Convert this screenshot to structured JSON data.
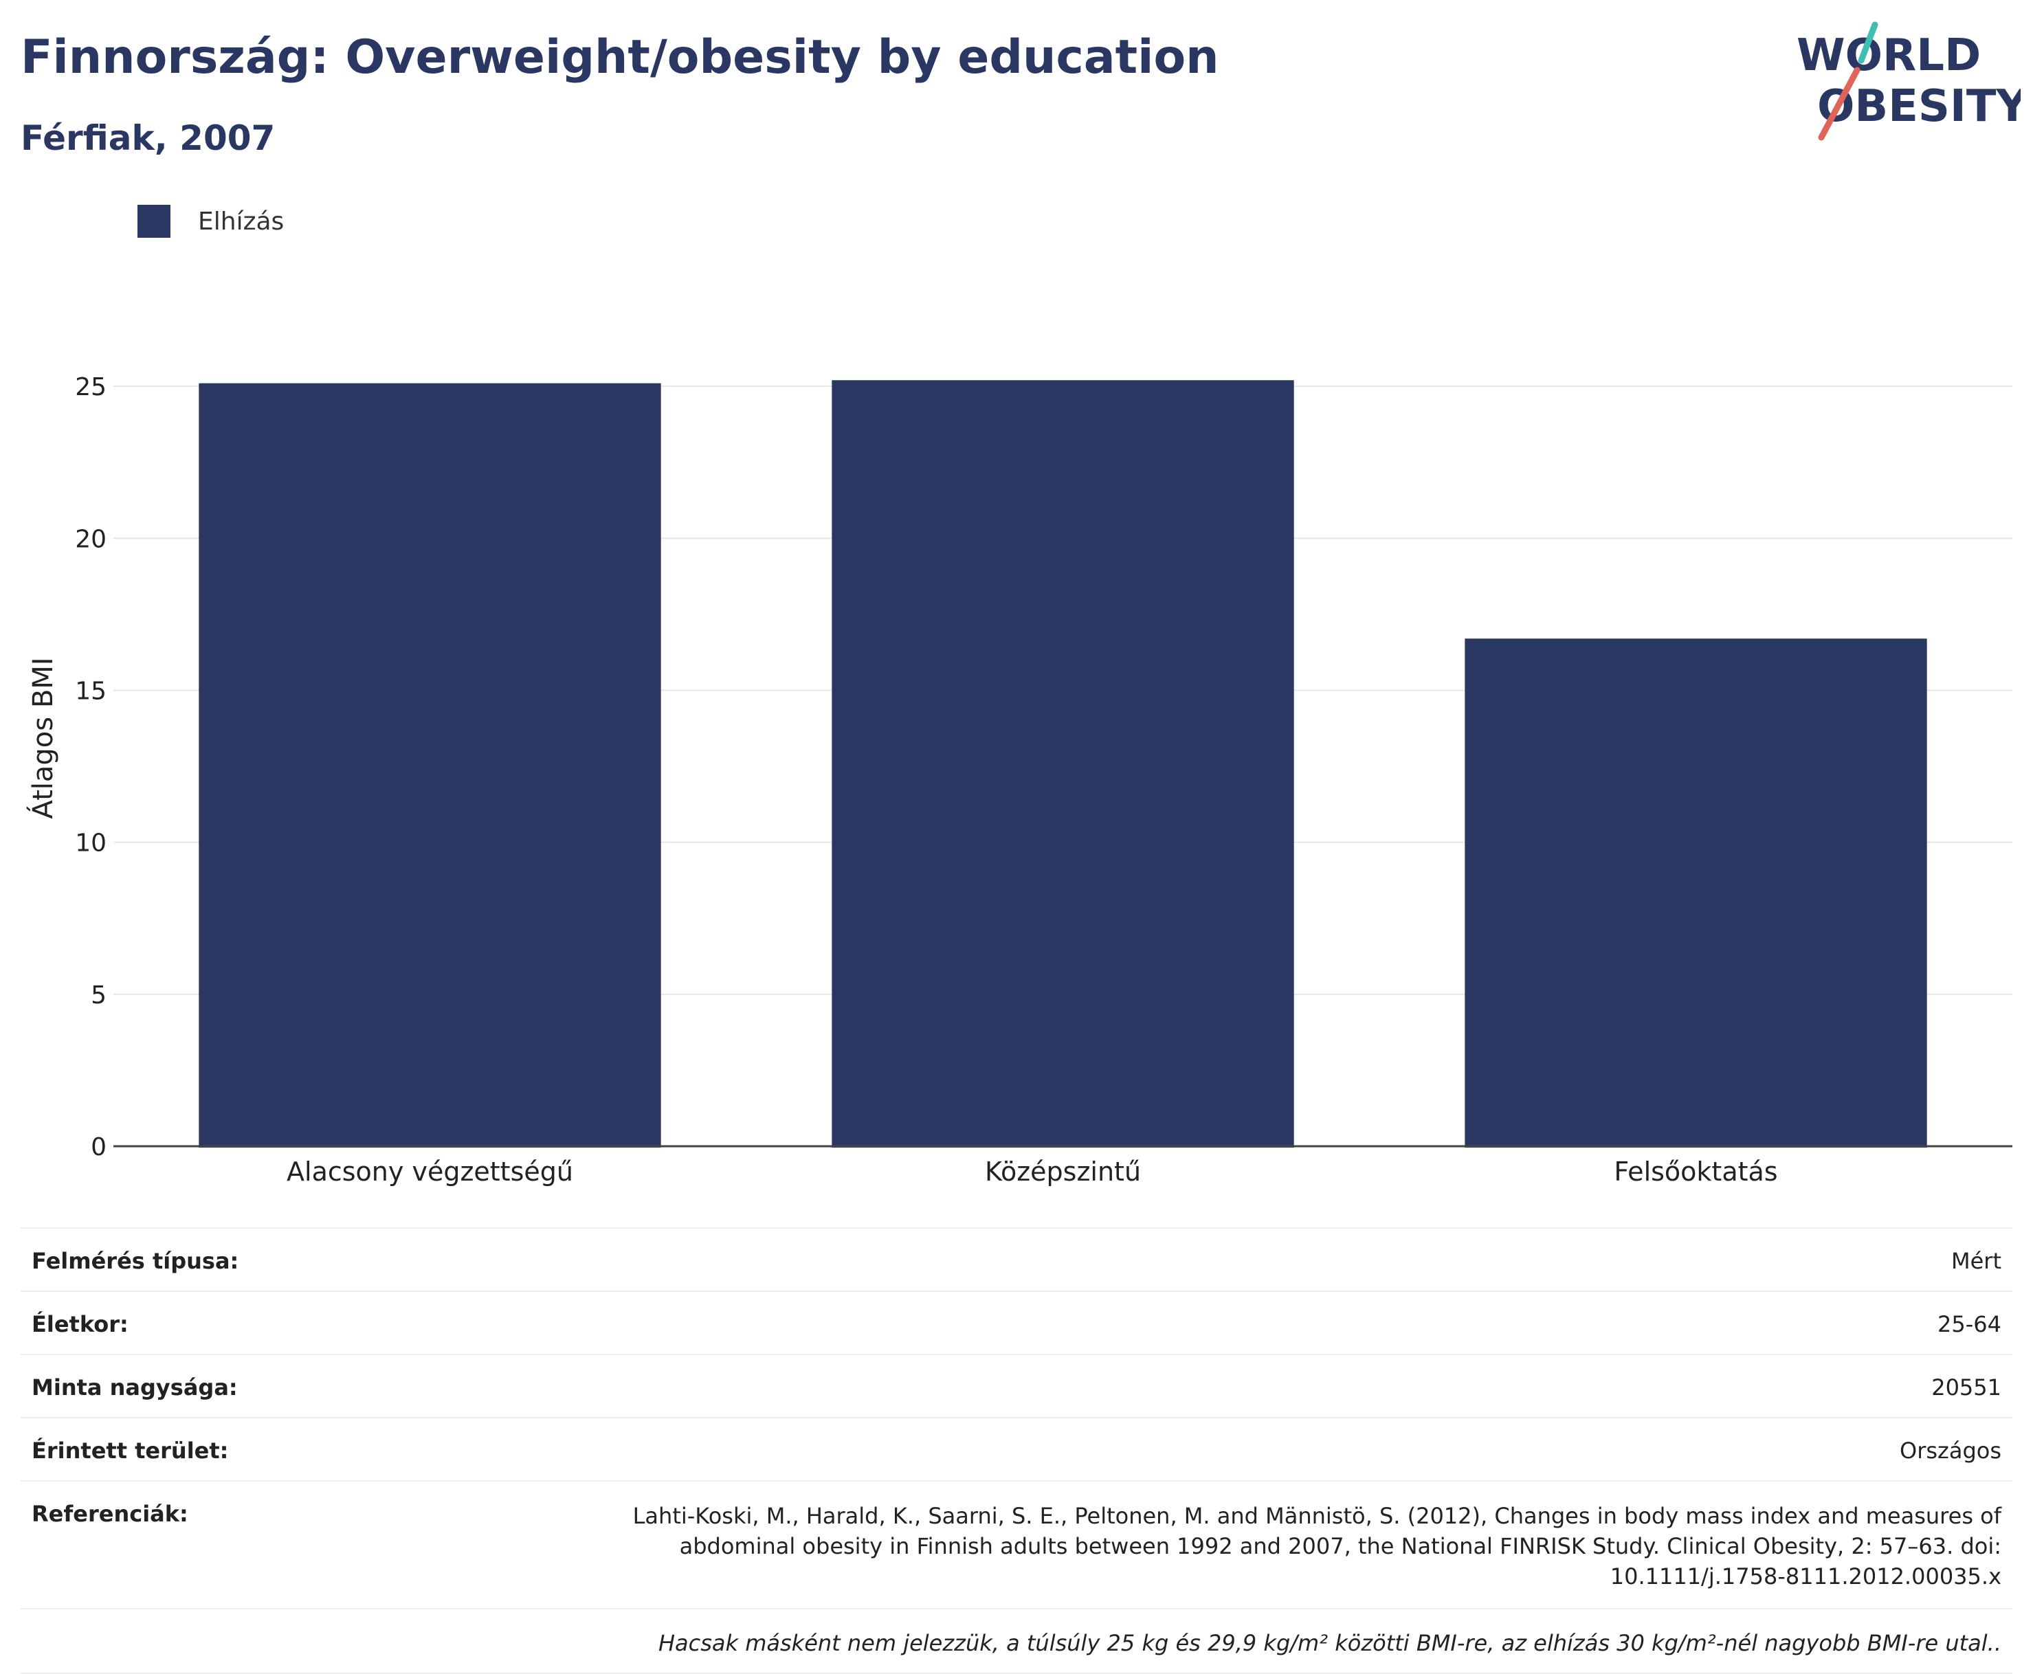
{
  "header": {
    "title": "Finnország: Overweight/obesity by education",
    "subtitle": "Férfiak, 2007"
  },
  "logo": {
    "line1": "WORLD",
    "line2": "OBESITY",
    "text_color": "#2b3763",
    "accent_teal": "#3fbfb2",
    "accent_red": "#e0645a"
  },
  "legend": {
    "label": "Elhízás",
    "color": "#2b3763"
  },
  "chart_data": {
    "type": "bar",
    "categories": [
      "Alacsony végzettségű",
      "Középszintű",
      "Felsőoktatás"
    ],
    "series": [
      {
        "name": "Elhízás",
        "values": [
          25.1,
          25.2,
          16.7
        ],
        "color": "#2b3763"
      }
    ],
    "ylabel": "Átlagos BMI",
    "ylim": [
      0,
      25.5
    ],
    "yticks": [
      0,
      5,
      10,
      15,
      20,
      25
    ],
    "grid": true,
    "legend_position": "top-left"
  },
  "info": {
    "rows": [
      {
        "label": "Felmérés típusa:",
        "value": "Mért"
      },
      {
        "label": "Életkor:",
        "value": "25-64"
      },
      {
        "label": "Minta nagysága:",
        "value": "20551"
      },
      {
        "label": "Érintett terület:",
        "value": "Országos"
      },
      {
        "label": "Referenciák:",
        "value": "Lahti-Koski, M., Harald, K., Saarni, S. E., Peltonen, M. and Männistö, S. (2012), Changes in body mass index and measures of abdominal obesity in Finnish adults between 1992 and 2007, the National FINRISK Study. Clinical Obesity, 2: 57–63. doi: 10.1111/j.1758-8111.2012.00035.x"
      }
    ],
    "note": "Hacsak másként nem jelezzük, a túlsúly 25 kg és 29,9 kg/m² közötti BMI-re, az elhízás 30 kg/m²-nél nagyobb BMI-re utal.."
  }
}
